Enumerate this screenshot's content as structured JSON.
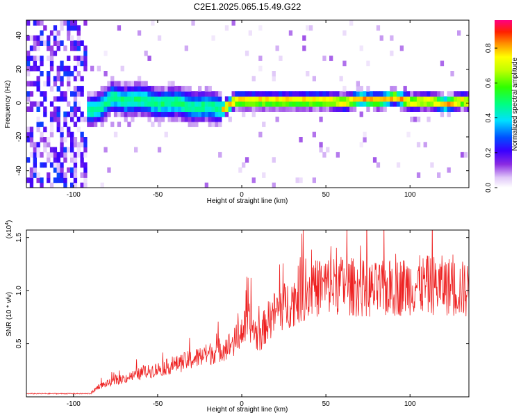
{
  "chart_data": [
    {
      "type": "heatmap",
      "title": "C2E1.2025.065.15.49.G22",
      "xlabel": "Height of straight line (km)",
      "ylabel": "Frequency (Hz)",
      "xlim": [
        -128,
        135
      ],
      "ylim": [
        -50,
        49
      ],
      "xticks": [
        -100,
        -50,
        0,
        50,
        100
      ],
      "yticks": [
        -40,
        -20,
        0,
        20,
        40
      ],
      "colorbar": {
        "label": "Normalized spectral amplitude",
        "range": [
          0.0,
          0.96
        ],
        "ticks": [
          0.0,
          0.2,
          0.4,
          0.6,
          0.8
        ],
        "tick_labels": [
          "0.0",
          "0.2",
          "0.4",
          "0.6",
          "0.8"
        ]
      },
      "ridge": {
        "x": [
          -92,
          -85,
          -78,
          -70,
          -60,
          -50,
          -40,
          -30,
          -20,
          -12,
          -5,
          10,
          30,
          50,
          60,
          70,
          80,
          90,
          100,
          110,
          120,
          130,
          135
        ],
        "y": [
          -6,
          -4,
          2,
          0,
          1,
          -2,
          -1,
          -4,
          -3,
          -5,
          0,
          0,
          0,
          0,
          -1,
          1,
          0,
          2,
          -1,
          0,
          -2,
          0,
          -1
        ]
      }
    },
    {
      "type": "line",
      "xlabel": "Height of straight line (km)",
      "ylabel": "SNR (10 * v/v)",
      "y_multiplier": "(x10",
      "y_multiplier_exp": "4",
      "y_multiplier_close": ")",
      "xlim": [
        -128,
        135
      ],
      "ylim": [
        0,
        1.57
      ],
      "xticks": [
        -100,
        -50,
        0,
        50,
        100
      ],
      "yticks": [
        0.5,
        1.0,
        1.5
      ],
      "ytick_labels": [
        "0.5",
        "1.0",
        "1.5"
      ],
      "color": "#ee2222",
      "trend": {
        "x": [
          -128,
          -90,
          -85,
          -60,
          -40,
          -20,
          -12,
          -5,
          0,
          5,
          10,
          15,
          20,
          30,
          40,
          50,
          60,
          80,
          100,
          120,
          135
        ],
        "y": [
          0.03,
          0.03,
          0.1,
          0.22,
          0.3,
          0.4,
          0.45,
          0.5,
          0.62,
          0.7,
          0.55,
          0.7,
          0.8,
          0.9,
          1.0,
          1.05,
          1.05,
          1.0,
          1.05,
          1.05,
          1.0
        ]
      }
    }
  ]
}
